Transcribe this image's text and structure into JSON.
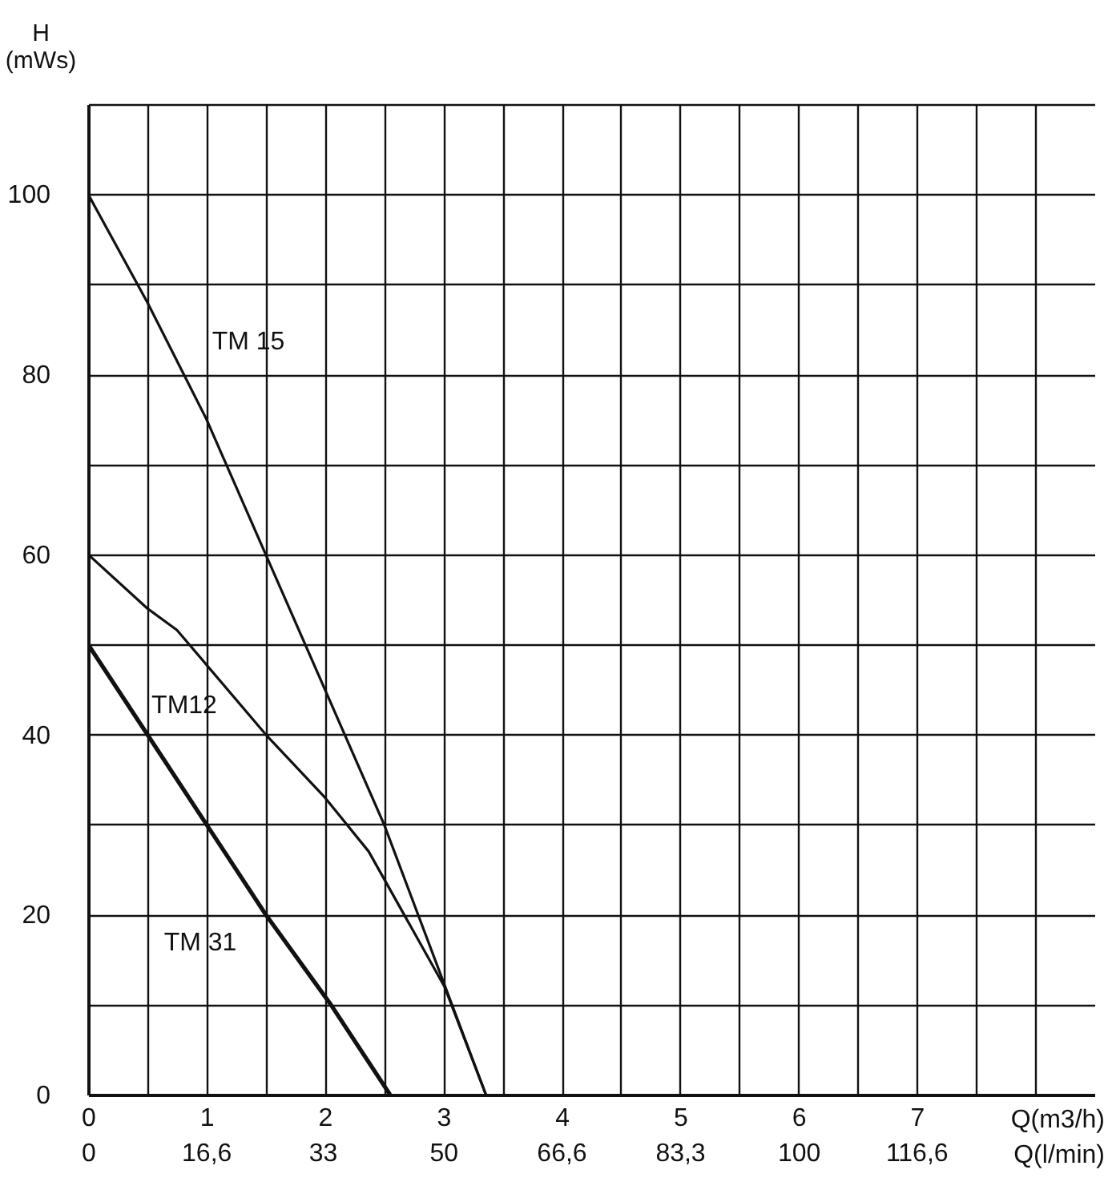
{
  "chart_data": {
    "type": "line",
    "xlabel": "Q(m3/h)",
    "ylabel": "H\n(mWs)",
    "x2label": "Q(l/min)",
    "xlim": [
      0,
      8.5
    ],
    "ylim": [
      0,
      110
    ],
    "x2lim": [
      0,
      141.67
    ],
    "xticks": [
      0,
      {
        "value": 0.5,
        "label": null
      },
      1,
      {
        "value": 1.5,
        "label": null
      },
      2,
      {
        "value": 2.5,
        "label": null
      },
      3,
      {
        "value": 3.5,
        "label": null
      },
      4,
      {
        "value": 4.5,
        "label": null
      },
      5,
      {
        "value": 5.5,
        "label": null
      },
      6,
      {
        "value": 6.5,
        "label": null
      },
      7,
      {
        "value": 7.5,
        "label": null
      },
      {
        "value": 8,
        "label": null
      }
    ],
    "yticks": [
      0,
      {
        "value": 10,
        "label": null
      },
      20,
      {
        "value": 30,
        "label": null
      },
      40,
      {
        "value": 50,
        "label": null
      },
      60,
      {
        "value": 70,
        "label": null
      },
      80,
      {
        "value": 90,
        "label": null
      },
      100,
      {
        "value": 110,
        "label": null
      }
    ],
    "x2ticks": [
      0,
      {
        "value": 16.6,
        "label": "16,6"
      },
      33,
      50,
      {
        "value": 66.6,
        "label": "66,6"
      },
      {
        "value": 83.3,
        "label": "83,3"
      },
      100,
      {
        "value": 116.6,
        "label": "116,6"
      }
    ],
    "grid": true,
    "series": [
      {
        "name": "TM 15",
        "color": "#111111",
        "x": [
          0,
          0.5,
          1,
          1.5,
          2.5,
          3.36
        ],
        "values": [
          100,
          88,
          75,
          60,
          30,
          0
        ]
      },
      {
        "name": "TM12",
        "color": "#111111",
        "x": [
          0,
          0.5,
          0.75,
          1.5,
          2,
          2.37,
          3.01,
          3.36
        ],
        "values": [
          60,
          54,
          51.6,
          40,
          33,
          27,
          12,
          0
        ]
      },
      {
        "name": "TM 31",
        "color": "#111111",
        "x": [
          0,
          0.5,
          1,
          1.5,
          2.05,
          2.55
        ],
        "values": [
          50,
          40,
          30,
          20,
          10,
          0
        ]
      }
    ]
  }
}
